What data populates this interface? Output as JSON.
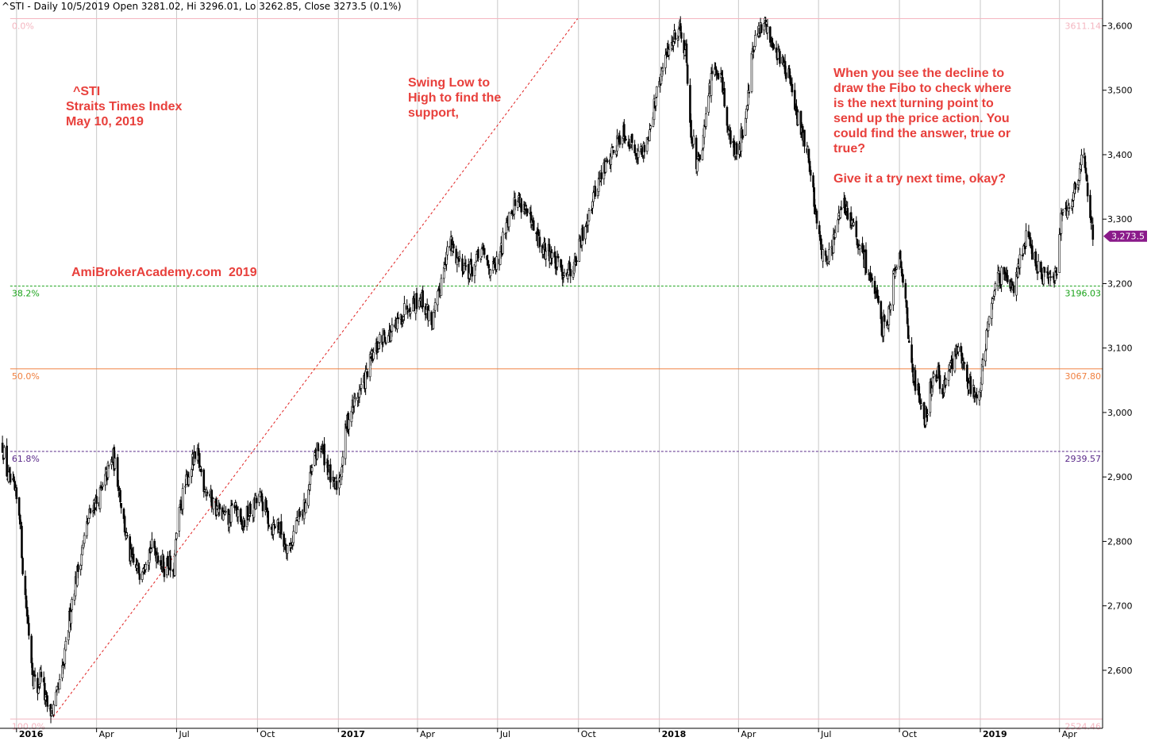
{
  "header": "^STI - Daily 10/5/2019 Open 3281.02, Hi 3296.01, Lo 3262.85, Close 3273.5 (0.1%)",
  "annotations": {
    "symbol": [
      "^STI",
      "Straits Times Index",
      "May 10, 2019"
    ],
    "watermark": "AmiBrokerAcademy.com  2019",
    "swing_note": [
      "Swing Low to",
      "High to find the",
      "support,"
    ],
    "decline_note": [
      "When you see the decline to",
      "draw the Fibo to check where",
      "is the next turning point to",
      "send up the price action. You",
      "could find the answer, true or",
      "true?",
      "",
      "Give it a try next time, okay?"
    ]
  },
  "colors": {
    "candle": "#000000",
    "annotation": "#e8403c",
    "fibo_0": "#f4b6c0",
    "fibo_38": "#1aa31a",
    "fibo_50": "#f08040",
    "fibo_61": "#5a2a8a",
    "fibo_100": "#f4b6c0",
    "swing_line": "#e02020",
    "grid": "#c8c8c8",
    "price_tag": "#8a1a8a"
  },
  "chart_data": {
    "type": "candlestick",
    "symbol": "^STI",
    "x_range": [
      "2015-12-15",
      "2019-05-20"
    ],
    "y_range": [
      2510,
      3640
    ],
    "x_ticks": [
      {
        "label": "2016",
        "date": "2016-01-01",
        "bold": true
      },
      {
        "label": "Apr",
        "date": "2016-04-01"
      },
      {
        "label": "Jul",
        "date": "2016-07-01"
      },
      {
        "label": "Oct",
        "date": "2016-10-01"
      },
      {
        "label": "2017",
        "date": "2017-01-01",
        "bold": true
      },
      {
        "label": "Apr",
        "date": "2017-04-01"
      },
      {
        "label": "Jul",
        "date": "2017-07-01"
      },
      {
        "label": "Oct",
        "date": "2017-10-01"
      },
      {
        "label": "2018",
        "date": "2018-01-01",
        "bold": true
      },
      {
        "label": "Apr",
        "date": "2018-04-01"
      },
      {
        "label": "Jul",
        "date": "2018-07-01"
      },
      {
        "label": "Oct",
        "date": "2018-10-01"
      },
      {
        "label": "2019",
        "date": "2019-01-01",
        "bold": true
      },
      {
        "label": "Apr",
        "date": "2019-04-01"
      }
    ],
    "y_ticks": [
      {
        "label": "2,600",
        "value": 2600
      },
      {
        "label": "2,700",
        "value": 2700
      },
      {
        "label": "2,800",
        "value": 2800
      },
      {
        "label": "2,900",
        "value": 2900
      },
      {
        "label": "3,000",
        "value": 3000
      },
      {
        "label": "3,100",
        "value": 3100
      },
      {
        "label": "3,200",
        "value": 3200
      },
      {
        "label": "3,300",
        "value": 3300
      },
      {
        "label": "3,400",
        "value": 3400
      },
      {
        "label": "3,500",
        "value": 3500
      },
      {
        "label": "3,600",
        "value": 3600
      }
    ],
    "last_price": {
      "label": "3,273.5",
      "value": 3273.5
    },
    "fibonacci": [
      {
        "level": "0.0%",
        "value": 3611.14,
        "value_label": "3611.14",
        "dashed": false,
        "color_key": "fibo_0"
      },
      {
        "level": "38.2%",
        "value": 3196.03,
        "value_label": "3196.03",
        "dashed": true,
        "color_key": "fibo_38"
      },
      {
        "level": "50.0%",
        "value": 3067.8,
        "value_label": "3067.80",
        "dashed": false,
        "color_key": "fibo_50"
      },
      {
        "level": "61.8%",
        "value": 2939.57,
        "value_label": "2939.57",
        "dashed": true,
        "color_key": "fibo_61"
      },
      {
        "level": "100.0%",
        "value": 2524.46,
        "value_label": "2524.46",
        "dashed": false,
        "color_key": "fibo_100"
      }
    ],
    "swing_line": {
      "from": {
        "date": "2016-02-12",
        "value": 2528
      },
      "to": {
        "date": "2017-09-30",
        "value": 3611
      }
    },
    "price_path": [
      [
        "2015-12-16",
        2950
      ],
      [
        "2015-12-22",
        2900
      ],
      [
        "2015-12-29",
        2880
      ],
      [
        "2016-01-05",
        2840
      ],
      [
        "2016-01-08",
        2760
      ],
      [
        "2016-01-12",
        2700
      ],
      [
        "2016-01-15",
        2660
      ],
      [
        "2016-01-20",
        2590
      ],
      [
        "2016-01-25",
        2570
      ],
      [
        "2016-01-29",
        2600
      ],
      [
        "2016-02-03",
        2550
      ],
      [
        "2016-02-08",
        2535
      ],
      [
        "2016-02-12",
        2540
      ],
      [
        "2016-02-18",
        2570
      ],
      [
        "2016-02-24",
        2610
      ],
      [
        "2016-03-01",
        2680
      ],
      [
        "2016-03-05",
        2720
      ],
      [
        "2016-03-10",
        2750
      ],
      [
        "2016-03-16",
        2790
      ],
      [
        "2016-03-22",
        2830
      ],
      [
        "2016-03-28",
        2860
      ],
      [
        "2016-04-01",
        2860
      ],
      [
        "2016-04-08",
        2880
      ],
      [
        "2016-04-14",
        2910
      ],
      [
        "2016-04-20",
        2930
      ],
      [
        "2016-04-26",
        2890
      ],
      [
        "2016-05-02",
        2830
      ],
      [
        "2016-05-08",
        2780
      ],
      [
        "2016-05-14",
        2760
      ],
      [
        "2016-05-20",
        2755
      ],
      [
        "2016-05-26",
        2775
      ],
      [
        "2016-06-02",
        2790
      ],
      [
        "2016-06-10",
        2780
      ],
      [
        "2016-06-17",
        2760
      ],
      [
        "2016-06-22",
        2770
      ],
      [
        "2016-06-27",
        2740
      ],
      [
        "2016-07-01",
        2810
      ],
      [
        "2016-07-06",
        2860
      ],
      [
        "2016-07-12",
        2890
      ],
      [
        "2016-07-18",
        2920
      ],
      [
        "2016-07-25",
        2930
      ],
      [
        "2016-08-01",
        2890
      ],
      [
        "2016-08-08",
        2870
      ],
      [
        "2016-08-15",
        2850
      ],
      [
        "2016-08-22",
        2840
      ],
      [
        "2016-08-29",
        2830
      ],
      [
        "2016-09-05",
        2860
      ],
      [
        "2016-09-12",
        2820
      ],
      [
        "2016-09-19",
        2840
      ],
      [
        "2016-09-26",
        2850
      ],
      [
        "2016-10-03",
        2870
      ],
      [
        "2016-10-10",
        2850
      ],
      [
        "2016-10-17",
        2820
      ],
      [
        "2016-10-24",
        2830
      ],
      [
        "2016-10-31",
        2800
      ],
      [
        "2016-11-07",
        2790
      ],
      [
        "2016-11-14",
        2830
      ],
      [
        "2016-11-21",
        2840
      ],
      [
        "2016-11-28",
        2880
      ],
      [
        "2016-12-05",
        2930
      ],
      [
        "2016-12-12",
        2950
      ],
      [
        "2016-12-19",
        2920
      ],
      [
        "2016-12-27",
        2880
      ],
      [
        "2017-01-03",
        2900
      ],
      [
        "2017-01-10",
        2980
      ],
      [
        "2017-01-17",
        3010
      ],
      [
        "2017-01-24",
        3030
      ],
      [
        "2017-01-31",
        3050
      ],
      [
        "2017-02-07",
        3080
      ],
      [
        "2017-02-14",
        3100
      ],
      [
        "2017-02-21",
        3120
      ],
      [
        "2017-02-28",
        3120
      ],
      [
        "2017-03-07",
        3130
      ],
      [
        "2017-03-14",
        3150
      ],
      [
        "2017-03-21",
        3170
      ],
      [
        "2017-03-28",
        3170
      ],
      [
        "2017-04-04",
        3180
      ],
      [
        "2017-04-11",
        3160
      ],
      [
        "2017-04-18",
        3140
      ],
      [
        "2017-04-25",
        3180
      ],
      [
        "2017-05-02",
        3240
      ],
      [
        "2017-05-09",
        3260
      ],
      [
        "2017-05-16",
        3240
      ],
      [
        "2017-05-23",
        3230
      ],
      [
        "2017-05-30",
        3220
      ],
      [
        "2017-06-06",
        3230
      ],
      [
        "2017-06-13",
        3250
      ],
      [
        "2017-06-20",
        3230
      ],
      [
        "2017-06-27",
        3220
      ],
      [
        "2017-07-04",
        3240
      ],
      [
        "2017-07-11",
        3300
      ],
      [
        "2017-07-18",
        3320
      ],
      [
        "2017-07-25",
        3330
      ],
      [
        "2017-08-01",
        3320
      ],
      [
        "2017-08-08",
        3290
      ],
      [
        "2017-08-15",
        3270
      ],
      [
        "2017-08-22",
        3250
      ],
      [
        "2017-08-29",
        3250
      ],
      [
        "2017-09-05",
        3230
      ],
      [
        "2017-09-12",
        3220
      ],
      [
        "2017-09-19",
        3220
      ],
      [
        "2017-09-26",
        3230
      ],
      [
        "2017-10-03",
        3260
      ],
      [
        "2017-10-10",
        3300
      ],
      [
        "2017-10-17",
        3330
      ],
      [
        "2017-10-24",
        3360
      ],
      [
        "2017-10-31",
        3380
      ],
      [
        "2017-11-07",
        3400
      ],
      [
        "2017-11-14",
        3420
      ],
      [
        "2017-11-21",
        3440
      ],
      [
        "2017-11-28",
        3420
      ],
      [
        "2017-12-05",
        3410
      ],
      [
        "2017-12-12",
        3400
      ],
      [
        "2017-12-19",
        3430
      ],
      [
        "2017-12-27",
        3480
      ],
      [
        "2018-01-03",
        3520
      ],
      [
        "2018-01-10",
        3560
      ],
      [
        "2018-01-17",
        3580
      ],
      [
        "2018-01-24",
        3600
      ],
      [
        "2018-01-31",
        3560
      ],
      [
        "2018-02-06",
        3440
      ],
      [
        "2018-02-13",
        3380
      ],
      [
        "2018-02-20",
        3420
      ],
      [
        "2018-02-27",
        3500
      ],
      [
        "2018-03-06",
        3540
      ],
      [
        "2018-03-13",
        3520
      ],
      [
        "2018-03-20",
        3440
      ],
      [
        "2018-03-27",
        3400
      ],
      [
        "2018-04-03",
        3420
      ],
      [
        "2018-04-10",
        3470
      ],
      [
        "2018-04-17",
        3560
      ],
      [
        "2018-04-24",
        3590
      ],
      [
        "2018-05-01",
        3600
      ],
      [
        "2018-05-08",
        3580
      ],
      [
        "2018-05-15",
        3560
      ],
      [
        "2018-05-22",
        3540
      ],
      [
        "2018-05-29",
        3520
      ],
      [
        "2018-06-05",
        3460
      ],
      [
        "2018-06-12",
        3440
      ],
      [
        "2018-06-19",
        3400
      ],
      [
        "2018-06-26",
        3330
      ],
      [
        "2018-07-03",
        3260
      ],
      [
        "2018-07-10",
        3230
      ],
      [
        "2018-07-17",
        3260
      ],
      [
        "2018-07-24",
        3300
      ],
      [
        "2018-07-31",
        3320
      ],
      [
        "2018-08-07",
        3300
      ],
      [
        "2018-08-14",
        3260
      ],
      [
        "2018-08-21",
        3240
      ],
      [
        "2018-08-28",
        3220
      ],
      [
        "2018-09-04",
        3180
      ],
      [
        "2018-09-11",
        3130
      ],
      [
        "2018-09-18",
        3150
      ],
      [
        "2018-09-25",
        3220
      ],
      [
        "2018-10-02",
        3250
      ],
      [
        "2018-10-09",
        3150
      ],
      [
        "2018-10-16",
        3060
      ],
      [
        "2018-10-23",
        3030
      ],
      [
        "2018-10-30",
        2990
      ],
      [
        "2018-11-06",
        3040
      ],
      [
        "2018-11-13",
        3060
      ],
      [
        "2018-11-20",
        3040
      ],
      [
        "2018-11-27",
        3060
      ],
      [
        "2018-12-04",
        3100
      ],
      [
        "2018-12-11",
        3080
      ],
      [
        "2018-12-18",
        3050
      ],
      [
        "2018-12-24",
        3030
      ],
      [
        "2018-12-31",
        3040
      ],
      [
        "2019-01-04",
        3080
      ],
      [
        "2019-01-11",
        3150
      ],
      [
        "2019-01-18",
        3200
      ],
      [
        "2019-01-25",
        3210
      ],
      [
        "2019-02-01",
        3200
      ],
      [
        "2019-02-08",
        3200
      ],
      [
        "2019-02-15",
        3240
      ],
      [
        "2019-02-22",
        3270
      ],
      [
        "2019-03-01",
        3250
      ],
      [
        "2019-03-08",
        3220
      ],
      [
        "2019-03-15",
        3210
      ],
      [
        "2019-03-22",
        3200
      ],
      [
        "2019-03-29",
        3220
      ],
      [
        "2019-04-03",
        3310
      ],
      [
        "2019-04-10",
        3320
      ],
      [
        "2019-04-17",
        3340
      ],
      [
        "2019-04-22",
        3360
      ],
      [
        "2019-04-26",
        3390
      ],
      [
        "2019-04-30",
        3390
      ],
      [
        "2019-05-06",
        3300
      ],
      [
        "2019-05-10",
        3273
      ]
    ]
  }
}
